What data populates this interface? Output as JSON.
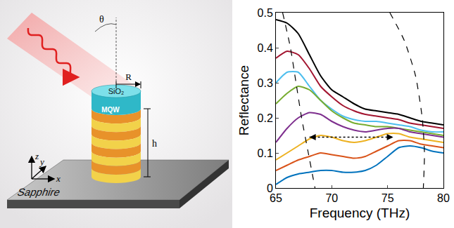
{
  "chart_data": {
    "type": "line",
    "x_label": "Frequency (THz)",
    "y_label": "Reflectance",
    "x": [
      65,
      66,
      67,
      68,
      69,
      70,
      71,
      72,
      73,
      74,
      75,
      76,
      77,
      78,
      79,
      80
    ],
    "xlim": [
      65,
      80
    ],
    "xticks": [
      65,
      70,
      75,
      80
    ],
    "ylim": [
      0,
      0.5
    ],
    "yticks": [
      0,
      0.1,
      0.2,
      0.3,
      0.4,
      0.5
    ],
    "grid": false,
    "series": [
      {
        "color": "#000000",
        "line_style": "solid",
        "values": [
          0.48,
          0.47,
          0.44,
          0.38,
          0.32,
          0.28,
          0.26,
          0.24,
          0.225,
          0.22,
          0.215,
          0.21,
          0.2,
          0.19,
          0.185,
          0.18
        ]
      },
      {
        "color": "#a2142f",
        "line_style": "solid",
        "values": [
          0.37,
          0.39,
          0.38,
          0.34,
          0.29,
          0.26,
          0.235,
          0.22,
          0.21,
          0.205,
          0.2,
          0.195,
          0.185,
          0.18,
          0.175,
          0.17
        ]
      },
      {
        "color": "#4dbeee",
        "line_style": "solid",
        "values": [
          0.3,
          0.33,
          0.33,
          0.29,
          0.25,
          0.225,
          0.205,
          0.195,
          0.19,
          0.19,
          0.185,
          0.18,
          0.175,
          0.165,
          0.16,
          0.16
        ]
      },
      {
        "color": "#77ac30",
        "line_style": "solid",
        "values": [
          0.24,
          0.27,
          0.29,
          0.28,
          0.25,
          0.22,
          0.2,
          0.185,
          0.18,
          0.175,
          0.175,
          0.17,
          0.165,
          0.16,
          0.155,
          0.15
        ]
      },
      {
        "color": "#7e2f8e",
        "line_style": "solid",
        "values": [
          0.13,
          0.17,
          0.2,
          0.215,
          0.21,
          0.19,
          0.175,
          0.165,
          0.16,
          0.165,
          0.17,
          0.17,
          0.16,
          0.155,
          0.15,
          0.145
        ]
      },
      {
        "color": "#edb120",
        "line_style": "solid",
        "values": [
          0.08,
          0.1,
          0.12,
          0.14,
          0.15,
          0.145,
          0.135,
          0.13,
          0.135,
          0.145,
          0.155,
          0.155,
          0.145,
          0.14,
          0.135,
          0.13
        ]
      },
      {
        "color": "#d95319",
        "line_style": "solid",
        "values": [
          0.05,
          0.065,
          0.08,
          0.09,
          0.1,
          0.095,
          0.09,
          0.085,
          0.09,
          0.105,
          0.12,
          0.135,
          0.135,
          0.125,
          0.12,
          0.115
        ]
      },
      {
        "color": "#0072bd",
        "line_style": "solid",
        "values": [
          0.01,
          0.03,
          0.04,
          0.045,
          0.05,
          0.05,
          0.045,
          0.045,
          0.05,
          0.065,
          0.09,
          0.115,
          0.12,
          0.115,
          0.105,
          0.1
        ]
      },
      {
        "color": "#000000",
        "line_style": "dashed",
        "x": [
          65.6,
          66.3,
          66.8,
          67.3,
          67.9,
          68.5
        ],
        "values": [
          0.5,
          0.4,
          0.3,
          0.2,
          0.1,
          0.0
        ]
      },
      {
        "color": "#000000",
        "line_style": "dashed",
        "x": [
          75.2,
          76.5,
          77.5,
          78.1,
          78.3,
          78.2
        ],
        "values": [
          0.5,
          0.42,
          0.32,
          0.2,
          0.1,
          0.0
        ]
      }
    ],
    "arrow": {
      "x": [
        68,
        75.5
      ],
      "y": 0.145,
      "line_style": "dotted",
      "color": "#000000"
    }
  },
  "diagram": {
    "labels": {
      "top": "SiO₂",
      "body": "MQW",
      "radius": "R",
      "height": "h",
      "substrate": "Sapphire",
      "angle": "θ",
      "x": "x",
      "y": "y",
      "z": "z"
    }
  }
}
